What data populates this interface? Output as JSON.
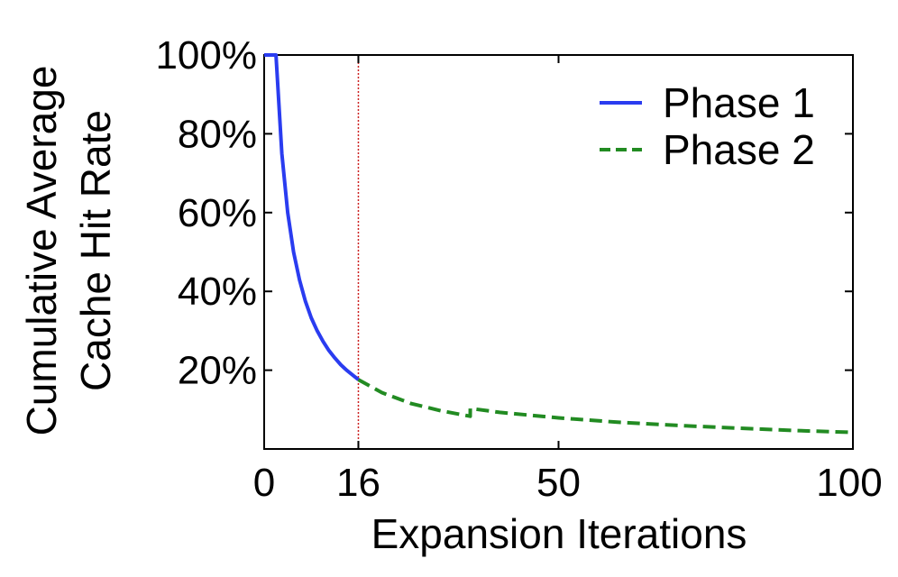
{
  "chart_data": {
    "type": "line",
    "xlabel": "Expansion Iterations",
    "ylabel_lines": [
      "Cumulative Average",
      "Cache Hit Rate"
    ],
    "xlim": [
      0,
      100
    ],
    "ylim": [
      0,
      100
    ],
    "x_ticks": [
      0,
      16,
      50,
      100
    ],
    "x_tick_labels": [
      "0",
      "16",
      "50",
      "100"
    ],
    "y_ticks": [
      20,
      40,
      60,
      80,
      100
    ],
    "y_tick_labels": [
      "20%",
      "40%",
      "60%",
      "80%",
      "100%"
    ],
    "grid": false,
    "legend_position": "top-right",
    "vline": {
      "x": 16,
      "color": "#cc2222",
      "style": "dotted"
    },
    "series": [
      {
        "name": "Phase 1",
        "color": "#2a3cf0",
        "style": "solid",
        "x": [
          0,
          1,
          2,
          3,
          4,
          5,
          6,
          7,
          8,
          9,
          10,
          11,
          12,
          13,
          14,
          15,
          16
        ],
        "y": [
          100,
          100,
          100,
          75,
          60,
          50,
          42.9,
          37.5,
          33.3,
          30,
          27.3,
          25,
          23.1,
          21.4,
          20,
          18.8,
          17.6
        ]
      },
      {
        "name": "Phase 2",
        "color": "#228B22",
        "style": "dashed",
        "x": [
          16,
          20,
          25,
          30,
          35,
          35.01,
          40,
          50,
          60,
          70,
          80,
          90,
          100
        ],
        "y": [
          17.6,
          14.3,
          11.5,
          9.7,
          8.3,
          10.3,
          9.3,
          7.9,
          6.8,
          6.0,
          5.3,
          4.7,
          4.2
        ]
      }
    ]
  }
}
